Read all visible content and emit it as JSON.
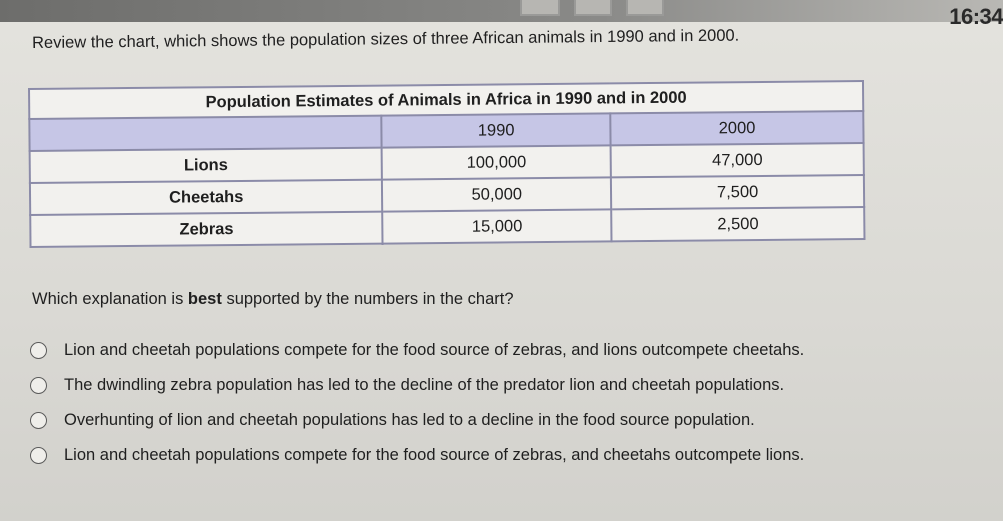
{
  "status": {
    "clock": "16:34"
  },
  "prompt": {
    "intro": "Review the chart, which shows the population sizes of three African animals in 1990 and in 2000."
  },
  "table": {
    "caption": "Population Estimates of Animals in Africa in 1990 and in 2000",
    "columns": [
      "",
      "1990",
      "2000"
    ],
    "rows": [
      {
        "animal": "Lions",
        "y1990": "100,000",
        "y2000": "47,000"
      },
      {
        "animal": "Cheetahs",
        "y1990": "50,000",
        "y2000": "7,500"
      },
      {
        "animal": "Zebras",
        "y1990": "15,000",
        "y2000": "2,500"
      }
    ]
  },
  "question": {
    "before": "Which explanation is ",
    "emphasis": "best",
    "after": " supported by the numbers in the chart?"
  },
  "options": [
    {
      "label": "Lion and cheetah populations compete for the food source of zebras, and lions outcompete cheetahs."
    },
    {
      "label": "The dwindling zebra population has led to the decline of the predator lion and cheetah populations."
    },
    {
      "label": "Overhunting of lion and cheetah populations has led to a decline in the food source population."
    },
    {
      "label": "Lion and cheetah populations compete for the food source of zebras, and cheetahs outcompete lions."
    }
  ]
}
